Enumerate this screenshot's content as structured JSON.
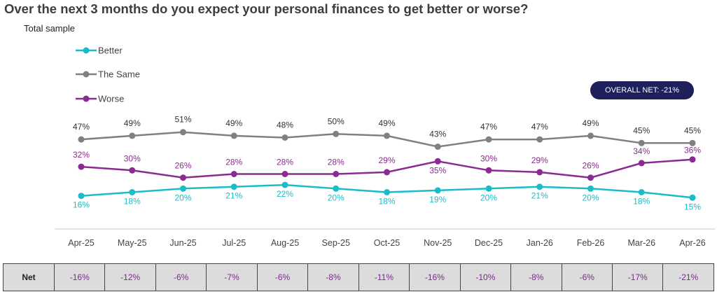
{
  "title": "Over the next 3 months do you expect your personal finances to get better or worse?",
  "subtitle": "Total sample",
  "overall_net": "OVERALL NET: -21%",
  "colors": {
    "better": "#1bbcc9",
    "same": "#808080",
    "worse": "#8b2a91",
    "badge": "#1f1f5c"
  },
  "net_row": {
    "label": "Net",
    "values": [
      "-16%",
      "-12%",
      "-6%",
      "-7%",
      "-6%",
      "-8%",
      "-11%",
      "-16%",
      "-10%",
      "-8%",
      "-6%",
      "-17%",
      "-21%"
    ]
  },
  "chart_data": {
    "type": "line",
    "categories": [
      "Apr-25",
      "May-25",
      "Jun-25",
      "Jul-25",
      "Aug-25",
      "Sep-25",
      "Oct-25",
      "Nov-25",
      "Dec-25",
      "Jan-26",
      "Feb-26",
      "Mar-26",
      "Apr-26"
    ],
    "series": [
      {
        "name": "Better",
        "key": "better",
        "values": [
          16,
          18,
          20,
          21,
          22,
          20,
          18,
          19,
          20,
          21,
          20,
          18,
          15
        ],
        "labels": [
          "16%",
          "18%",
          "20%",
          "21%",
          "22%",
          "20%",
          "18%",
          "19%",
          "20%",
          "21%",
          "20%",
          "18%",
          "15%"
        ]
      },
      {
        "name": "The Same",
        "key": "same",
        "values": [
          47,
          49,
          51,
          49,
          48,
          50,
          49,
          43,
          47,
          47,
          49,
          45,
          45
        ],
        "labels": [
          "47%",
          "49%",
          "51%",
          "49%",
          "48%",
          "50%",
          "49%",
          "43%",
          "47%",
          "47%",
          "49%",
          "45%",
          "45%"
        ]
      },
      {
        "name": "Worse",
        "key": "worse",
        "values": [
          32,
          30,
          26,
          28,
          28,
          28,
          29,
          35,
          30,
          29,
          26,
          34,
          36
        ],
        "labels": [
          "32%",
          "30%",
          "26%",
          "28%",
          "28%",
          "28%",
          "29%",
          "35%",
          "30%",
          "29%",
          "26%",
          "34%",
          "36%"
        ]
      }
    ],
    "legend_position": "top-left",
    "title": "Over the next 3 months do you expect your personal finances to get better or worse?",
    "xlabel": "",
    "ylabel": "",
    "grid": false
  }
}
